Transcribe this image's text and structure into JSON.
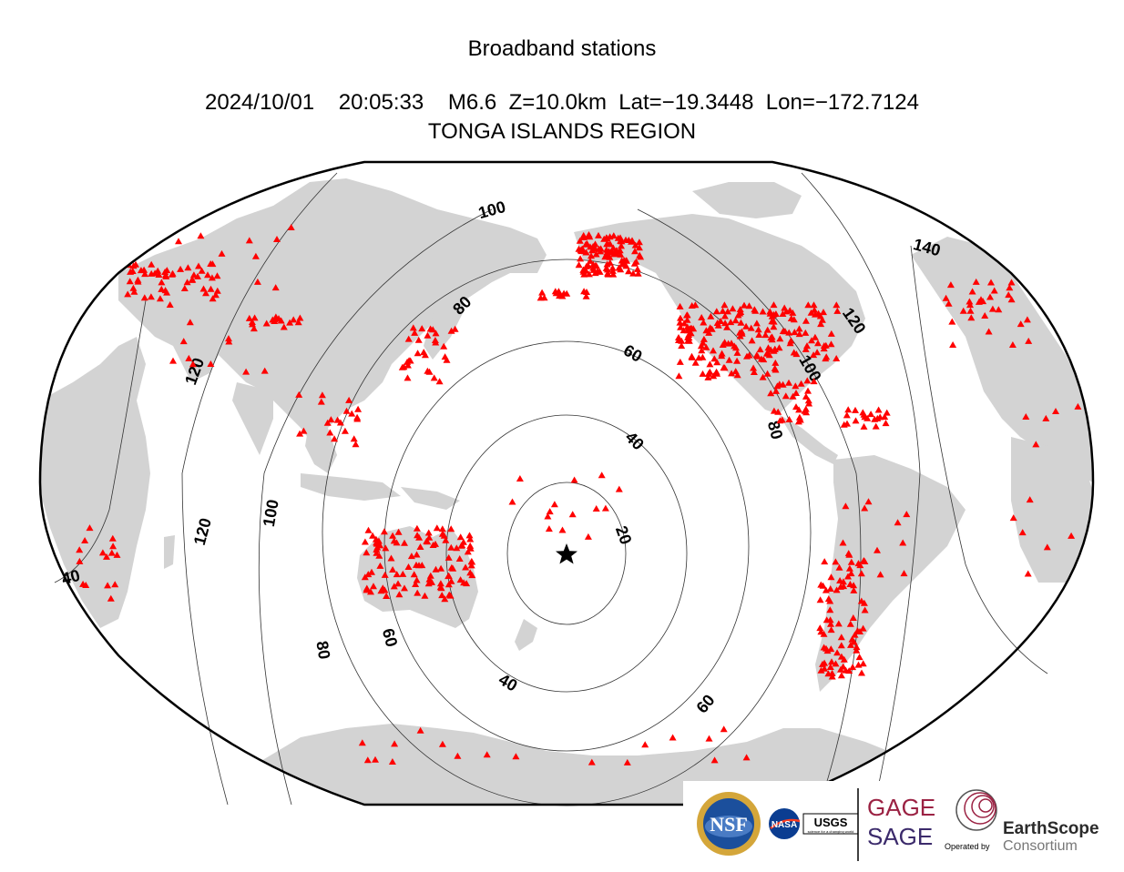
{
  "header": {
    "title": "Broadband stations",
    "event_line": "2024/10/01    20:05:33    M6.6  Z=10.0km  Lat=−19.3448  Lon=−172.7124",
    "region": "TONGA ISLANDS REGION"
  },
  "map": {
    "projection": "robinson",
    "center_lon": -172.7124,
    "land_color": "#d3d3d3",
    "ocean_color": "#ffffff",
    "station_color": "#ff0000",
    "epicenter": {
      "lat": -19.3448,
      "lon": -172.7124,
      "marker": "star"
    },
    "contour_labels": [
      "20",
      "40",
      "60",
      "80",
      "100",
      "120",
      "140",
      "120",
      "100",
      "80",
      "60",
      "40",
      "40",
      "60",
      "80",
      "100",
      "120"
    ]
  },
  "logos": {
    "nsf": "NSF",
    "nasa": "NASA",
    "usgs": "USGS",
    "usgs_tag": "science for a changing world",
    "gage": "GAGE",
    "sage": "SAGE",
    "operated_by": "Operated by",
    "earthscope": "EarthScope",
    "consortium": "Consortium"
  }
}
